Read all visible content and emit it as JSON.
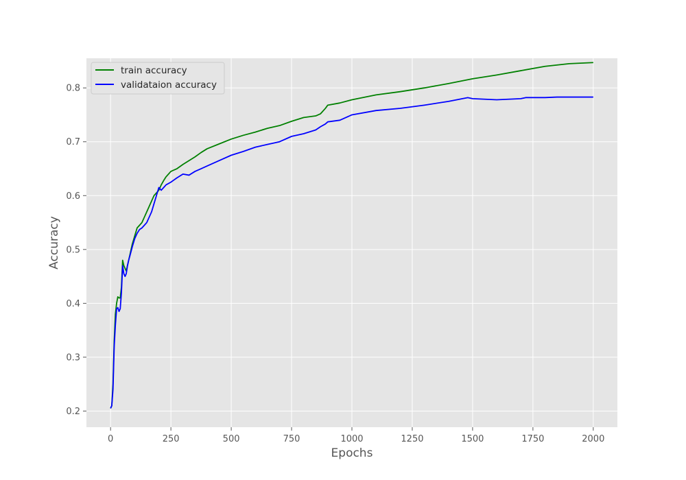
{
  "chart_data": {
    "type": "line",
    "title": "",
    "xlabel": "Epochs",
    "ylabel": "Accuracy",
    "xlim": [
      -100,
      2100
    ],
    "ylim": [
      0.17,
      0.855
    ],
    "xticks": [
      0,
      250,
      500,
      750,
      1000,
      1250,
      1500,
      1750,
      2000
    ],
    "xtick_labels": [
      "0",
      "250",
      "500",
      "750",
      "1000",
      "1250",
      "1500",
      "1750",
      "2000"
    ],
    "yticks": [
      0.2,
      0.3,
      0.4,
      0.5,
      0.6,
      0.7,
      0.8
    ],
    "ytick_labels": [
      "0.2",
      "0.3",
      "0.4",
      "0.5",
      "0.6",
      "0.7",
      "0.8"
    ],
    "grid": true,
    "background": "#e5e5e5",
    "grid_color": "#ffffff",
    "legend_position": "upper-left",
    "series": [
      {
        "name": "train accuracy",
        "color": "#008000",
        "x": [
          0,
          5,
          10,
          15,
          20,
          25,
          30,
          35,
          40,
          45,
          50,
          55,
          60,
          65,
          70,
          75,
          80,
          90,
          100,
          110,
          120,
          130,
          140,
          150,
          160,
          170,
          180,
          190,
          200,
          210,
          220,
          230,
          250,
          275,
          300,
          325,
          350,
          375,
          400,
          450,
          500,
          550,
          600,
          650,
          700,
          750,
          800,
          850,
          870,
          890,
          900,
          950,
          1000,
          1100,
          1200,
          1300,
          1400,
          1500,
          1600,
          1700,
          1800,
          1900,
          2000
        ],
        "y": [
          0.205,
          0.21,
          0.25,
          0.33,
          0.38,
          0.4,
          0.412,
          0.41,
          0.41,
          0.43,
          0.48,
          0.47,
          0.465,
          0.46,
          0.47,
          0.48,
          0.49,
          0.51,
          0.525,
          0.54,
          0.545,
          0.55,
          0.56,
          0.57,
          0.58,
          0.59,
          0.6,
          0.605,
          0.61,
          0.62,
          0.628,
          0.635,
          0.645,
          0.65,
          0.658,
          0.665,
          0.672,
          0.68,
          0.687,
          0.696,
          0.705,
          0.712,
          0.718,
          0.725,
          0.73,
          0.738,
          0.745,
          0.748,
          0.752,
          0.762,
          0.768,
          0.772,
          0.778,
          0.787,
          0.793,
          0.8,
          0.808,
          0.817,
          0.824,
          0.832,
          0.84,
          0.845,
          0.847
        ]
      },
      {
        "name": "validataion accuracy",
        "color": "#0000ff",
        "x": [
          0,
          5,
          10,
          15,
          20,
          25,
          30,
          35,
          40,
          45,
          50,
          55,
          60,
          65,
          70,
          75,
          80,
          90,
          100,
          110,
          120,
          130,
          140,
          150,
          160,
          170,
          180,
          190,
          200,
          210,
          220,
          230,
          250,
          275,
          300,
          325,
          350,
          375,
          400,
          450,
          500,
          550,
          600,
          650,
          700,
          750,
          800,
          850,
          870,
          890,
          900,
          950,
          1000,
          1100,
          1200,
          1300,
          1400,
          1480,
          1500,
          1600,
          1700,
          1720,
          1800,
          1850,
          1900,
          2000
        ],
        "y": [
          0.205,
          0.21,
          0.24,
          0.32,
          0.36,
          0.39,
          0.392,
          0.385,
          0.39,
          0.42,
          0.47,
          0.455,
          0.45,
          0.455,
          0.47,
          0.48,
          0.488,
          0.505,
          0.52,
          0.53,
          0.537,
          0.54,
          0.545,
          0.55,
          0.56,
          0.57,
          0.585,
          0.6,
          0.615,
          0.61,
          0.615,
          0.62,
          0.625,
          0.633,
          0.64,
          0.638,
          0.645,
          0.65,
          0.655,
          0.665,
          0.675,
          0.682,
          0.69,
          0.695,
          0.7,
          0.71,
          0.715,
          0.722,
          0.728,
          0.733,
          0.737,
          0.74,
          0.75,
          0.758,
          0.762,
          0.768,
          0.775,
          0.782,
          0.78,
          0.778,
          0.78,
          0.782,
          0.782,
          0.783,
          0.783,
          0.783
        ]
      }
    ]
  }
}
